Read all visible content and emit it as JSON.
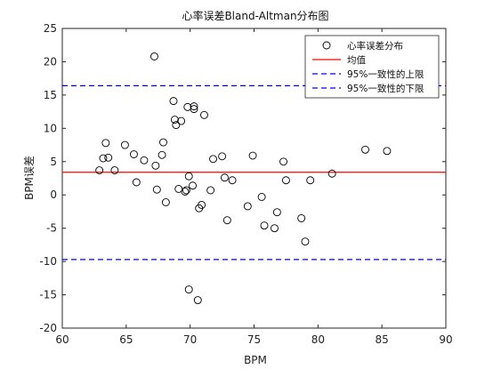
{
  "chart_data": {
    "type": "scatter",
    "title": "心率误差Bland-Altman分布图",
    "xlabel": "BPM",
    "ylabel": "BPM误差",
    "xlim": [
      60,
      90
    ],
    "ylim": [
      -20,
      25
    ],
    "xticks": [
      "60",
      "65",
      "70",
      "75",
      "80",
      "85",
      "90"
    ],
    "yticks": [
      "-20",
      "-15",
      "-10",
      "-5",
      "0",
      "5",
      "10",
      "15",
      "20",
      "25"
    ],
    "grid": false,
    "legend_position": "top-right",
    "legend": [
      "心率误差分布",
      "均值",
      "95%一致性的上限",
      "95%一致性的下限"
    ],
    "series": [
      {
        "name": "心率误差分布",
        "marker": "circle",
        "color": "#000000",
        "x": [
          67.2,
          62.9,
          63.2,
          63.4,
          63.6,
          64.1,
          64.9,
          65.6,
          65.8,
          66.4,
          67.3,
          67.4,
          67.8,
          67.9,
          68.1,
          68.7,
          68.8,
          68.9,
          69.1,
          69.3,
          69.6,
          69.7,
          69.8,
          69.9,
          70.2,
          70.3,
          70.3,
          70.7,
          70.9,
          71.1,
          71.6,
          71.8,
          72.5,
          72.7,
          72.9,
          73.3,
          74.5,
          74.9,
          75.6,
          75.8,
          76.6,
          76.8,
          77.3,
          77.5,
          79.0,
          78.7,
          79.4,
          81.1,
          83.7,
          85.4,
          70.6,
          69.9
        ],
        "y": [
          20.8,
          3.7,
          5.5,
          7.8,
          5.6,
          3.7,
          7.5,
          6.1,
          1.9,
          5.2,
          4.4,
          0.8,
          6.0,
          7.9,
          -1.1,
          14.1,
          11.3,
          10.5,
          0.9,
          11.1,
          0.5,
          0.7,
          13.2,
          -14.2,
          1.4,
          13.3,
          12.9,
          -2.0,
          -1.5,
          12.0,
          0.7,
          5.4,
          5.8,
          2.6,
          -3.8,
          2.2,
          -1.7,
          5.9,
          -0.3,
          -4.6,
          -5.0,
          -2.6,
          5.0,
          2.2,
          -7.0,
          -3.5,
          2.2,
          3.2,
          6.8,
          6.6,
          -15.8,
          2.8
        ]
      }
    ],
    "mean_line": {
      "name": "均值",
      "y": 3.4,
      "color": "#ff0000"
    },
    "upper_limit": {
      "name": "95%一致性的上限",
      "y": 16.4,
      "color": "#0000ff"
    },
    "lower_limit": {
      "name": "95%一致性的下限",
      "y": -9.7,
      "color": "#0000ff"
    }
  }
}
